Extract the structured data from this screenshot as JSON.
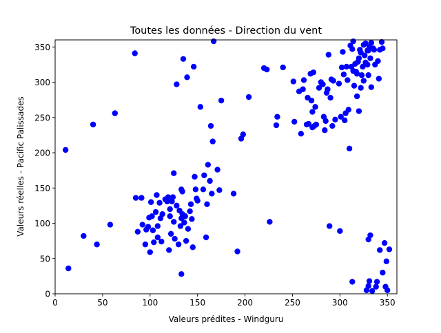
{
  "chart_data": {
    "type": "scatter",
    "title": "Toutes les données - Direction du vent",
    "xlabel": "Valeurs prédites - Windguru",
    "ylabel": "Valeurs réelles - Pacific Palissades",
    "xlim": [
      0,
      360
    ],
    "ylim": [
      0,
      360
    ],
    "xticks": [
      0,
      50,
      100,
      150,
      200,
      250,
      300,
      350
    ],
    "yticks": [
      0,
      50,
      100,
      150,
      200,
      250,
      300,
      350
    ],
    "grid": false,
    "legend": "none",
    "marker_color": "#0000ff",
    "series": [
      {
        "points": [
          [
            11,
            204
          ],
          [
            14,
            36
          ],
          [
            30,
            82
          ],
          [
            40,
            240
          ],
          [
            44,
            70
          ],
          [
            58,
            98
          ],
          [
            63,
            256
          ],
          [
            84,
            341
          ],
          [
            85,
            136
          ],
          [
            87,
            88
          ],
          [
            91,
            136
          ],
          [
            92,
            98
          ],
          [
            95,
            70
          ],
          [
            96,
            91
          ],
          [
            98,
            95
          ],
          [
            99,
            108
          ],
          [
            100,
            59
          ],
          [
            101,
            130
          ],
          [
            102,
            110
          ],
          [
            103,
            90
          ],
          [
            104,
            73
          ],
          [
            106,
            116
          ],
          [
            107,
            140
          ],
          [
            108,
            80
          ],
          [
            108,
            96
          ],
          [
            110,
            129
          ],
          [
            111,
            107
          ],
          [
            112,
            74
          ],
          [
            113,
            113
          ],
          [
            116,
            134
          ],
          [
            118,
            131
          ],
          [
            119,
            137
          ],
          [
            120,
            62
          ],
          [
            121,
            110
          ],
          [
            121,
            120
          ],
          [
            122,
            85
          ],
          [
            123,
            131
          ],
          [
            124,
            137
          ],
          [
            125,
            171
          ],
          [
            125,
            102
          ],
          [
            126,
            78
          ],
          [
            128,
            297
          ],
          [
            128,
            125
          ],
          [
            130,
            70
          ],
          [
            131,
            118
          ],
          [
            132,
            96
          ],
          [
            133,
            107
          ],
          [
            133,
            148
          ],
          [
            133,
            28
          ],
          [
            134,
            145
          ],
          [
            134,
            113
          ],
          [
            135,
            333
          ],
          [
            136,
            101
          ],
          [
            137,
            110
          ],
          [
            138,
            75
          ],
          [
            139,
            307
          ],
          [
            140,
            92
          ],
          [
            142,
            117
          ],
          [
            143,
            127
          ],
          [
            144,
            106
          ],
          [
            145,
            66
          ],
          [
            146,
            322
          ],
          [
            147,
            166
          ],
          [
            148,
            148
          ],
          [
            149,
            135
          ],
          [
            150,
            132
          ],
          [
            153,
            265
          ],
          [
            156,
            148
          ],
          [
            157,
            168
          ],
          [
            159,
            80
          ],
          [
            160,
            127
          ],
          [
            161,
            183
          ],
          [
            163,
            160
          ],
          [
            164,
            238
          ],
          [
            165,
            142
          ],
          [
            166,
            216
          ],
          [
            167,
            358
          ],
          [
            171,
            176
          ],
          [
            173,
            147
          ],
          [
            175,
            274
          ],
          [
            188,
            142
          ],
          [
            192,
            60
          ],
          [
            196,
            220
          ],
          [
            198,
            226
          ],
          [
            204,
            279
          ],
          [
            220,
            320
          ],
          [
            223,
            318
          ],
          [
            226,
            102
          ],
          [
            233,
            239
          ],
          [
            234,
            251
          ],
          [
            240,
            321
          ],
          [
            251,
            301
          ],
          [
            252,
            244
          ],
          [
            257,
            287
          ],
          [
            259,
            227
          ],
          [
            261,
            290
          ],
          [
            262,
            303
          ],
          [
            265,
            240
          ],
          [
            266,
            278
          ],
          [
            267,
            241
          ],
          [
            269,
            312
          ],
          [
            270,
            274
          ],
          [
            271,
            236
          ],
          [
            271,
            258
          ],
          [
            272,
            314
          ],
          [
            273,
            238
          ],
          [
            274,
            265
          ],
          [
            275,
            240
          ],
          [
            278,
            292
          ],
          [
            280,
            300
          ],
          [
            282,
            297
          ],
          [
            283,
            251
          ],
          [
            284,
            232
          ],
          [
            285,
            245
          ],
          [
            286,
            285
          ],
          [
            287,
            290
          ],
          [
            288,
            339
          ],
          [
            289,
            96
          ],
          [
            290,
            278
          ],
          [
            291,
            304
          ],
          [
            292,
            238
          ],
          [
            293,
            302
          ],
          [
            295,
            247
          ],
          [
            299,
            298
          ],
          [
            300,
            89
          ],
          [
            301,
            251
          ],
          [
            302,
            321
          ],
          [
            303,
            343
          ],
          [
            304,
            311
          ],
          [
            305,
            246
          ],
          [
            306,
            256
          ],
          [
            307,
            322
          ],
          [
            308,
            303
          ],
          [
            309,
            261
          ],
          [
            310,
            206
          ],
          [
            311,
            352
          ],
          [
            312,
            322
          ],
          [
            313,
            347
          ],
          [
            313,
            17
          ],
          [
            314,
            358
          ],
          [
            314,
            316
          ],
          [
            315,
            295
          ],
          [
            316,
            326
          ],
          [
            317,
            315
          ],
          [
            318,
            312
          ],
          [
            318,
            280
          ],
          [
            319,
            329
          ],
          [
            320,
            334
          ],
          [
            320,
            259
          ],
          [
            321,
            346
          ],
          [
            322,
            342
          ],
          [
            322,
            292
          ],
          [
            323,
            310
          ],
          [
            324,
            322
          ],
          [
            325,
            353
          ],
          [
            325,
            302
          ],
          [
            326,
            338
          ],
          [
            327,
            328
          ],
          [
            327,
            355
          ],
          [
            328,
            5
          ],
          [
            329,
            345
          ],
          [
            329,
            325
          ],
          [
            330,
            310
          ],
          [
            330,
            11
          ],
          [
            330,
            345
          ],
          [
            330,
            77
          ],
          [
            331,
            350
          ],
          [
            331,
            18
          ],
          [
            332,
            334
          ],
          [
            332,
            83
          ],
          [
            333,
            356
          ],
          [
            333,
            293
          ],
          [
            334,
            4
          ],
          [
            335,
            348
          ],
          [
            336,
            346
          ],
          [
            337,
            325
          ],
          [
            338,
            10
          ],
          [
            339,
            17
          ],
          [
            340,
            330
          ],
          [
            341,
            305
          ],
          [
            342,
            346
          ],
          [
            342,
            62
          ],
          [
            344,
            357
          ],
          [
            345,
            348
          ],
          [
            345,
            30
          ],
          [
            347,
            72
          ],
          [
            348,
            10
          ],
          [
            349,
            46
          ],
          [
            350,
            5
          ],
          [
            352,
            63
          ]
        ]
      }
    ]
  }
}
